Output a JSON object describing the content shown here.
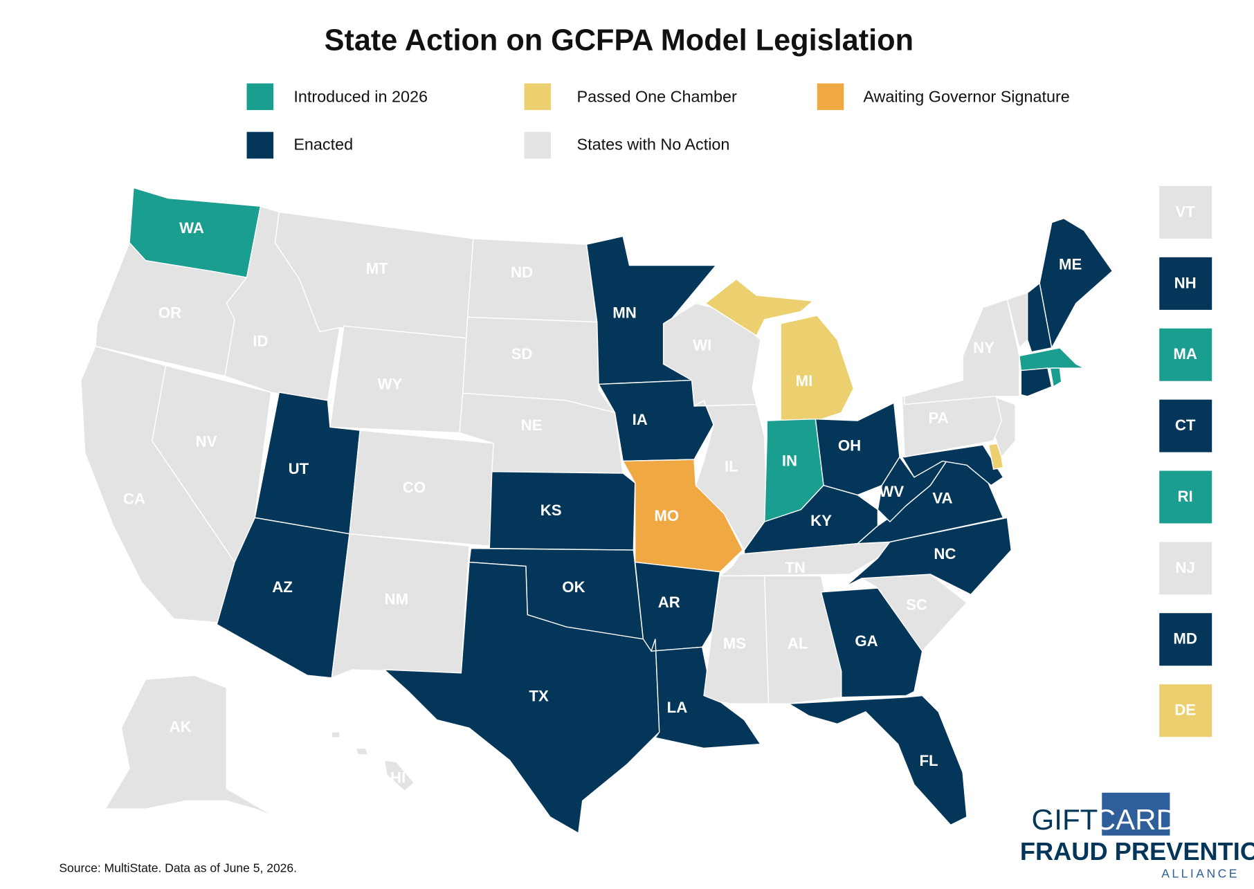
{
  "title": "State Action on GCFPA Model Legislation",
  "legend": [
    {
      "label": "Introduced in 2026",
      "color": "#1a9e8f",
      "states": [
        "WA",
        "IN",
        "MA",
        "RI"
      ]
    },
    {
      "label": "Passed One Chamber",
      "color": "#ecd06f",
      "states": [
        "MI",
        "DE"
      ]
    },
    {
      "label": "Awaiting Governor Signature",
      "color": "#f0a843",
      "states": [
        "MO"
      ]
    },
    {
      "label": "Enacted",
      "color": "#043659",
      "states": [
        "MN",
        "IA",
        "UT",
        "AZ",
        "KS",
        "OK",
        "TX",
        "AR",
        "LA",
        "OH",
        "KY",
        "WV",
        "VA",
        "NC",
        "GA",
        "FL",
        "ME",
        "NH",
        "CT",
        "MD"
      ]
    },
    {
      "label": "States with No Action",
      "color": "#e3e3e3",
      "states": [
        "OR",
        "CA",
        "NV",
        "ID",
        "MT",
        "WY",
        "ND",
        "SD",
        "NE",
        "CO",
        "NM",
        "WI",
        "IL",
        "TN",
        "MS",
        "AL",
        "SC",
        "PA",
        "NY",
        "NJ",
        "VT",
        "AK",
        "HI"
      ]
    }
  ],
  "source": "Source: MultiState. Data as of June 5, 2026.",
  "logo": {
    "line1a": "GIFT",
    "line1b": "CARD",
    "line2": "FRAUD PREVENTION",
    "line3": "ALLIANCE"
  }
}
